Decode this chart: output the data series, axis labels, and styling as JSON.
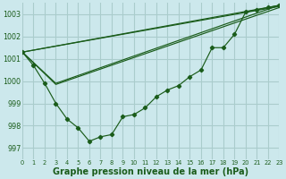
{
  "bg_color": "#cce8ec",
  "grid_color": "#aacccc",
  "line_color": "#1a5c1a",
  "marker_color": "#1a5c1a",
  "xlabel": "Graphe pression niveau de la mer (hPa)",
  "xlim": [
    0,
    23
  ],
  "ylim": [
    996.5,
    1003.5
  ],
  "yticks": [
    997,
    998,
    999,
    1000,
    1001,
    1002,
    1003
  ],
  "xticks": [
    0,
    1,
    2,
    3,
    4,
    5,
    6,
    7,
    8,
    9,
    10,
    11,
    12,
    13,
    14,
    15,
    16,
    17,
    18,
    19,
    20,
    21,
    22,
    23
  ],
  "series1_x": [
    0,
    1,
    2,
    3,
    4,
    5,
    6,
    7,
    8,
    9,
    10,
    11,
    12,
    13,
    14,
    15,
    16,
    17,
    18,
    19,
    20,
    21,
    22,
    23
  ],
  "series1_y": [
    1001.3,
    1000.7,
    999.9,
    999.0,
    998.3,
    997.9,
    997.3,
    997.5,
    997.6,
    998.4,
    998.5,
    998.8,
    999.3,
    999.6,
    999.8,
    1000.2,
    1000.5,
    1001.5,
    1001.5,
    1002.1,
    1003.1,
    1003.2,
    1003.3,
    1003.4
  ],
  "line2_x": [
    0,
    23
  ],
  "line2_y": [
    1001.3,
    1003.4
  ],
  "line3_x": [
    0,
    23
  ],
  "line3_y": [
    1001.3,
    1003.35
  ],
  "line4_x": [
    0,
    3,
    23
  ],
  "line4_y": [
    1001.3,
    999.9,
    1003.4
  ],
  "line5_x": [
    0,
    3,
    23
  ],
  "line5_y": [
    1001.3,
    999.85,
    1003.3
  ]
}
